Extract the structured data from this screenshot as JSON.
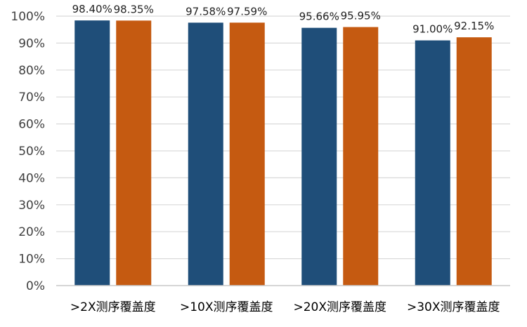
{
  "chart_data": {
    "type": "bar",
    "title": "",
    "xlabel": "",
    "ylabel": "",
    "categories": [
      ">2X测序覆盖度",
      ">10X测序覆盖度",
      ">20X测序覆盖度",
      ">30X测序覆盖度"
    ],
    "series": [
      {
        "color": "#1f4e79",
        "values": [
          98.4,
          97.58,
          95.66,
          91.0
        ],
        "labels": [
          "98.40%",
          "97.58%",
          "95.66%",
          "91.00%"
        ]
      },
      {
        "color": "#c55a11",
        "values": [
          98.35,
          97.59,
          95.95,
          92.15
        ],
        "labels": [
          "98.35%",
          "97.59%",
          "95.95%",
          "92.15%"
        ]
      }
    ],
    "ylim": [
      0,
      100
    ],
    "yticks": [
      0,
      10,
      20,
      30,
      40,
      50,
      60,
      70,
      80,
      90,
      100
    ],
    "ytick_labels": [
      "0%",
      "10%",
      "20%",
      "30%",
      "40%",
      "50%",
      "60%",
      "70%",
      "80%",
      "90%",
      "100%"
    ],
    "grid": true,
    "legend": "none"
  }
}
